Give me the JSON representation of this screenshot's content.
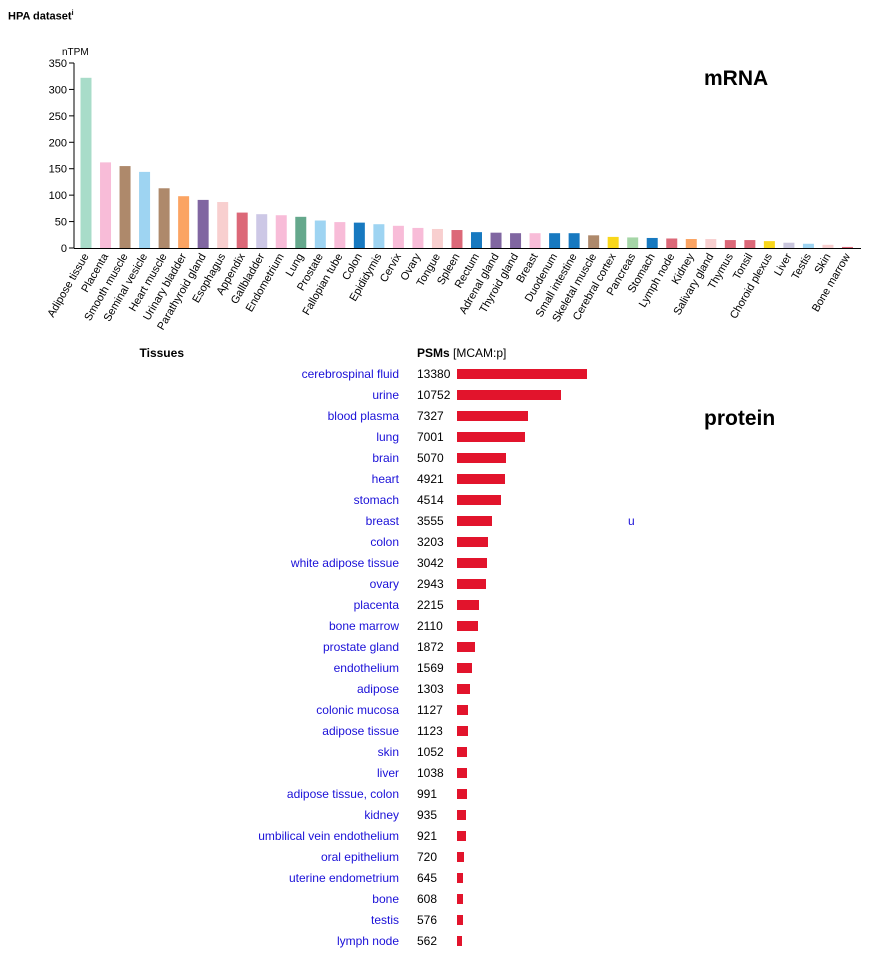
{
  "header": {
    "title": "HPA dataset",
    "superscript": "i"
  },
  "labels": {
    "mrna": "mRNA",
    "protein": "protein"
  },
  "chart_data": {
    "type": "bar",
    "title": "",
    "ylabel": "nTPM",
    "xlabel": "",
    "ylim": [
      0,
      350
    ],
    "yticks": [
      0,
      50,
      100,
      150,
      200,
      250,
      300,
      350
    ],
    "categories": [
      "Adipose tissue",
      "Placenta",
      "Smooth muscle",
      "Seminal vesicle",
      "Heart muscle",
      "Urinary bladder",
      "Parathyroid gland",
      "Esophagus",
      "Appendix",
      "Gallbladder",
      "Endometrium",
      "Lung",
      "Prostate",
      "Fallopian tube",
      "Colon",
      "Epididymis",
      "Cervix",
      "Ovary",
      "Tongue",
      "Spleen",
      "Rectum",
      "Adrenal gland",
      "Thyroid gland",
      "Breast",
      "Duodenum",
      "Small intestine",
      "Skeletal muscle",
      "Cerebral cortex",
      "Pancreas",
      "Stomach",
      "Lymph node",
      "Kidney",
      "Salivary gland",
      "Thymus",
      "Tonsil",
      "Choroid plexus",
      "Liver",
      "Testis",
      "Skin",
      "Bone marrow"
    ],
    "values": [
      322,
      162,
      155,
      144,
      113,
      98,
      91,
      87,
      67,
      64,
      62,
      59,
      52,
      49,
      48,
      45,
      42,
      38,
      36,
      34,
      30,
      29,
      28,
      28,
      28,
      28,
      24,
      21,
      20,
      19,
      18,
      17,
      17,
      15,
      15,
      13,
      10,
      8,
      6,
      2
    ],
    "colors": [
      "#a8dcc9",
      "#f8bcd8",
      "#ae896b",
      "#9ed4f2",
      "#ae896b",
      "#fba463",
      "#8066a1",
      "#f8cfcf",
      "#dc6878",
      "#cdc8e6",
      "#f8bcd8",
      "#65a88c",
      "#9ed4f2",
      "#f8bcd8",
      "#1779c0",
      "#9ed4f2",
      "#f8bcd8",
      "#f8bcd8",
      "#f8cfcf",
      "#dc6878",
      "#1779c0",
      "#8066a1",
      "#8066a1",
      "#f8bcd8",
      "#1779c0",
      "#1779c0",
      "#ae896b",
      "#f9d71b",
      "#a5d6a7",
      "#1779c0",
      "#dc6878",
      "#fba463",
      "#f8cfcf",
      "#dc6878",
      "#dc6878",
      "#f9d71b",
      "#c9c6dd",
      "#9ed4f2",
      "#f8cfcf",
      "#dc6878"
    ]
  },
  "protein": {
    "header_tissues": "Tissues",
    "header_psms": "PSMs",
    "header_source": "[MCAM:p]",
    "bar_color": "#e2142c",
    "max_value": 13380,
    "rows": [
      {
        "tissue": "cerebrospinal fluid",
        "psms": 13380
      },
      {
        "tissue": "urine",
        "psms": 10752
      },
      {
        "tissue": "blood plasma",
        "psms": 7327
      },
      {
        "tissue": "lung",
        "psms": 7001
      },
      {
        "tissue": "brain",
        "psms": 5070
      },
      {
        "tissue": "heart",
        "psms": 4921
      },
      {
        "tissue": "stomach",
        "psms": 4514
      },
      {
        "tissue": "breast",
        "psms": 3555
      },
      {
        "tissue": "colon",
        "psms": 3203
      },
      {
        "tissue": "white adipose tissue",
        "psms": 3042
      },
      {
        "tissue": "ovary",
        "psms": 2943
      },
      {
        "tissue": "placenta",
        "psms": 2215
      },
      {
        "tissue": "bone marrow",
        "psms": 2110
      },
      {
        "tissue": "prostate gland",
        "psms": 1872
      },
      {
        "tissue": "endothelium",
        "psms": 1569
      },
      {
        "tissue": "adipose",
        "psms": 1303
      },
      {
        "tissue": "colonic mucosa",
        "psms": 1127
      },
      {
        "tissue": "adipose tissue",
        "psms": 1123
      },
      {
        "tissue": "skin",
        "psms": 1052
      },
      {
        "tissue": "liver",
        "psms": 1038
      },
      {
        "tissue": "adipose tissue, colon",
        "psms": 991
      },
      {
        "tissue": "kidney",
        "psms": 935
      },
      {
        "tissue": "umbilical vein endothelium",
        "psms": 921
      },
      {
        "tissue": "oral epithelium",
        "psms": 720
      },
      {
        "tissue": "uterine endometrium",
        "psms": 645
      },
      {
        "tissue": "bone",
        "psms": 608
      },
      {
        "tissue": "testis",
        "psms": 576
      },
      {
        "tissue": "lymph node",
        "psms": 562
      }
    ]
  },
  "stray_text": "u"
}
